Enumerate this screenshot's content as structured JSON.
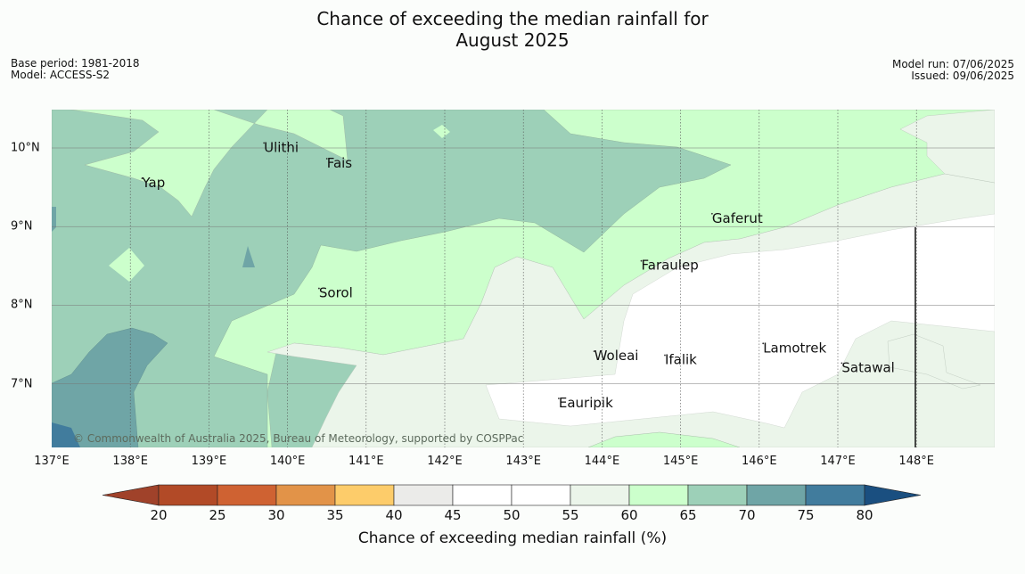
{
  "title": {
    "line1": "Chance of exceeding the median rainfall for",
    "line2": "August 2025"
  },
  "meta": {
    "base_period": "Base period: 1981-2018",
    "model": "Model: ACCESS-S2",
    "model_run": "Model run: 07/06/2025",
    "issued": "Issued: 09/06/2025"
  },
  "axes": {
    "lon_ticks": [
      "137°E",
      "138°E",
      "139°E",
      "140°E",
      "141°E",
      "142°E",
      "143°E",
      "144°E",
      "145°E",
      "146°E",
      "147°E",
      "148°E"
    ],
    "lat_ticks": [
      "10°N",
      "9°N",
      "8°N",
      "7°N"
    ]
  },
  "places": [
    {
      "name": "Yap",
      "lon": 138.15,
      "lat": 9.5
    },
    {
      "name": "Ulithi",
      "lon": 139.7,
      "lat": 9.95
    },
    {
      "name": "Fais",
      "lon": 140.5,
      "lat": 9.75
    },
    {
      "name": "Gaferut",
      "lon": 145.4,
      "lat": 9.05
    },
    {
      "name": "Faraulep",
      "lon": 144.5,
      "lat": 8.45
    },
    {
      "name": "Sorol",
      "lon": 140.4,
      "lat": 8.1
    },
    {
      "name": "Woleai",
      "lon": 143.9,
      "lat": 7.3
    },
    {
      "name": "Ifalik",
      "lon": 144.8,
      "lat": 7.25
    },
    {
      "name": "Lamotrek",
      "lon": 146.05,
      "lat": 7.4
    },
    {
      "name": "Satawal",
      "lon": 147.05,
      "lat": 7.15
    },
    {
      "name": "Eauripik",
      "lon": 143.45,
      "lat": 6.7
    }
  ],
  "copyright": "© Commonwealth of Australia 2025, Bureau of Meteorology, supported by COSPPac",
  "colorbar": {
    "label": "Chance of exceeding median rainfall (%)",
    "ticks": [
      "20",
      "25",
      "30",
      "35",
      "40",
      "45",
      "50",
      "55",
      "60",
      "65",
      "70",
      "75",
      "80"
    ],
    "colors": [
      "#b24a27",
      "#cf6232",
      "#e29348",
      "#fdcc6a",
      "#ebebe9",
      "#ffffff",
      "#ffffff",
      "#ebf5ea",
      "#ccffcc",
      "#9dd0b8",
      "#6fa5a6",
      "#417c9d"
    ],
    "under_color": "#a0422a",
    "over_color": "#1a4f80"
  }
}
